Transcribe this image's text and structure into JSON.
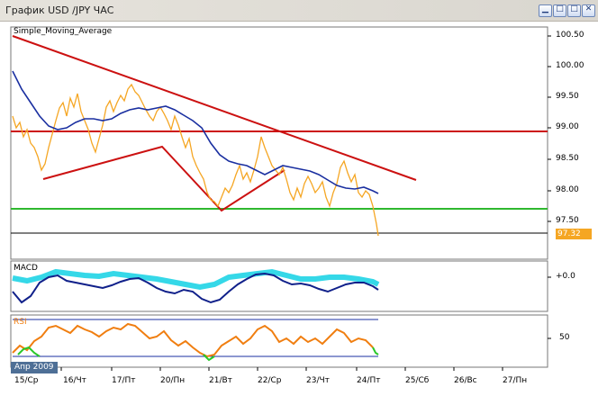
{
  "window": {
    "title": "График USD /JPY  ЧАС",
    "buttons": [
      {
        "name": "minimize",
        "glyph": "▁"
      },
      {
        "name": "restore",
        "glyph": "□"
      },
      {
        "name": "maximize",
        "glyph": "□"
      },
      {
        "name": "close",
        "glyph": "✕"
      }
    ]
  },
  "main_pane": {
    "indicator_label": "Simple_Moving_Average",
    "price_ticks": [
      "100.50",
      "100.00",
      "99.50",
      "99.00",
      "98.50",
      "98.00",
      "97.50"
    ],
    "current_price": "97.32",
    "colors": {
      "price": "#f5a623",
      "sma": "#1a2fa0",
      "trend": "#cc1111",
      "support": "#2fb82f"
    }
  },
  "macd_pane": {
    "label": "MACD",
    "tick": "+0.0",
    "colors": {
      "histogram": "#35d8e8",
      "main": "#10208a"
    }
  },
  "rsi_pane": {
    "label": "RSI",
    "tick": "50",
    "colors": {
      "line": "#f07e10",
      "low": "#29c829",
      "band": "#1a2fa0"
    }
  },
  "time_axis": {
    "labels": [
      "15/Ср",
      "16/Чт",
      "17/Пт",
      "20/Пн",
      "21/Вт",
      "22/Ср",
      "23/Чт",
      "24/Пт",
      "25/Сб",
      "26/Вс",
      "27/Пн"
    ],
    "period_badge": "Апр 2009"
  }
}
